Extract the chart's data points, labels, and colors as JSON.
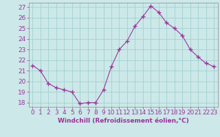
{
  "x": [
    0,
    1,
    2,
    3,
    4,
    5,
    6,
    7,
    8,
    9,
    10,
    11,
    12,
    13,
    14,
    15,
    16,
    17,
    18,
    19,
    20,
    21,
    22,
    23
  ],
  "y": [
    21.5,
    21.0,
    19.8,
    19.4,
    19.2,
    19.0,
    17.9,
    18.0,
    18.0,
    19.2,
    21.4,
    23.0,
    23.8,
    25.2,
    26.1,
    27.1,
    26.5,
    25.5,
    25.0,
    24.3,
    23.0,
    22.3,
    21.7,
    21.4
  ],
  "line_color": "#993399",
  "marker": "+",
  "bg_color": "#cce8e8",
  "grid_color": "#99cccc",
  "ylabel_ticks": [
    18,
    19,
    20,
    21,
    22,
    23,
    24,
    25,
    26,
    27
  ],
  "xlabel_ticks": [
    0,
    1,
    2,
    3,
    4,
    5,
    6,
    7,
    8,
    9,
    10,
    11,
    12,
    13,
    14,
    15,
    16,
    17,
    18,
    19,
    20,
    21,
    22,
    23
  ],
  "xlabel_labels": [
    "0",
    "1",
    "2",
    "3",
    "4",
    "5",
    "6",
    "7",
    "8",
    "9",
    "10",
    "11",
    "12",
    "13",
    "14",
    "15",
    "16",
    "17",
    "18",
    "19",
    "20",
    "21",
    "22",
    "23"
  ],
  "xlabel": "Windchill (Refroidissement éolien,°C)",
  "ylim": [
    17.6,
    27.4
  ],
  "xlim": [
    -0.5,
    23.5
  ],
  "tick_fontsize": 6.5,
  "xlabel_fontsize": 6.5,
  "spine_color": "#888888"
}
